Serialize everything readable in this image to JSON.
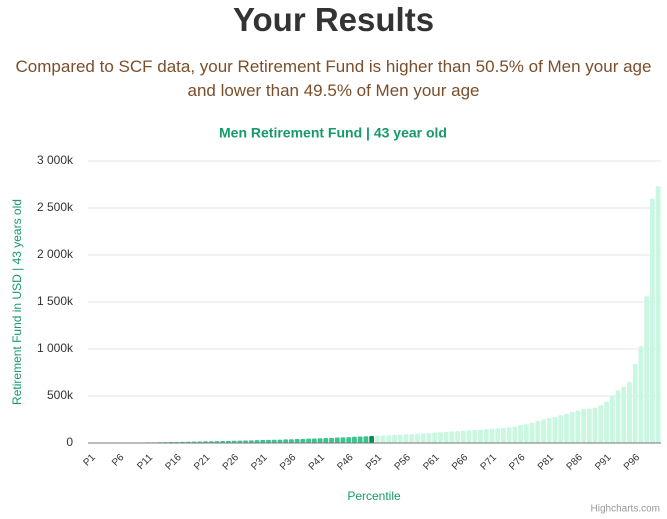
{
  "heading": "Your Results",
  "intro": "Compared to SCF data, your Retirement Fund is higher than 50.5% of Men your age and lower than 49.5% of Men your age",
  "chart_data": {
    "type": "bar",
    "title": "Men Retirement Fund | 43 year old",
    "y_label": "Retirement Fund in USD | 43 years old",
    "x_label": "Percentile",
    "credits": "Highcharts.com",
    "grid": true,
    "categories": [
      "P1",
      null,
      null,
      null,
      null,
      "P6",
      null,
      null,
      null,
      null,
      "P11",
      null,
      null,
      null,
      null,
      "P16",
      null,
      null,
      null,
      null,
      "P21",
      null,
      null,
      null,
      null,
      "P26",
      null,
      null,
      null,
      null,
      "P31",
      null,
      null,
      null,
      null,
      "P36",
      null,
      null,
      null,
      null,
      "P41",
      null,
      null,
      null,
      null,
      "P46",
      null,
      null,
      null,
      null,
      "P51",
      null,
      null,
      null,
      null,
      "P56",
      null,
      null,
      null,
      null,
      "P61",
      null,
      null,
      null,
      null,
      "P66",
      null,
      null,
      null,
      null,
      "P71",
      null,
      null,
      null,
      null,
      "P76",
      null,
      null,
      null,
      null,
      "P81",
      null,
      null,
      null,
      null,
      "P86",
      null,
      null,
      null,
      null,
      "P91",
      null,
      null,
      null,
      null,
      "P96",
      null,
      null,
      null,
      null
    ],
    "values": [
      0,
      500,
      1000,
      1500,
      2000,
      2500,
      3000,
      3500,
      4000,
      5000,
      6000,
      7000,
      8000,
      9000,
      10000,
      11000,
      12000,
      13000,
      14000,
      16000,
      18000,
      19000,
      20000,
      21000,
      22000,
      24000,
      25000,
      26000,
      28000,
      30000,
      32000,
      33000,
      35000,
      36000,
      38000,
      40000,
      42000,
      44000,
      46000,
      48000,
      50000,
      53000,
      55000,
      58000,
      60000,
      63000,
      66000,
      69000,
      72000,
      75000,
      78000,
      80000,
      83000,
      86000,
      89000,
      92000,
      95000,
      98000,
      101000,
      105000,
      110000,
      114000,
      118000,
      122000,
      126000,
      130000,
      134000,
      138000,
      142000,
      146000,
      150000,
      155000,
      160000,
      165000,
      175000,
      190000,
      200000,
      215000,
      235000,
      250000,
      265000,
      275000,
      295000,
      310000,
      330000,
      345000,
      360000,
      365000,
      375000,
      400000,
      440000,
      500000,
      560000,
      600000,
      650000,
      840000,
      1030000,
      1560000,
      2600000,
      2730000
    ],
    "colors": [
      "#3cc48f",
      "#3cc48f",
      "#3cc48f",
      "#3cc48f",
      "#3cc48f",
      "#3cc48f",
      "#3cc48f",
      "#3cc48f",
      "#3cc48f",
      "#3cc48f",
      "#3cc48f",
      "#3cc48f",
      "#3cc48f",
      "#3cc48f",
      "#3cc48f",
      "#3cc48f",
      "#3cc48f",
      "#3cc48f",
      "#3cc48f",
      "#3cc48f",
      "#3cc48f",
      "#3cc48f",
      "#3cc48f",
      "#3cc48f",
      "#3cc48f",
      "#3cc48f",
      "#3cc48f",
      "#3cc48f",
      "#3cc48f",
      "#3cc48f",
      "#3cc48f",
      "#3cc48f",
      "#3cc48f",
      "#3cc48f",
      "#3cc48f",
      "#3cc48f",
      "#3cc48f",
      "#3cc48f",
      "#3cc48f",
      "#3cc48f",
      "#3cc48f",
      "#3cc48f",
      "#3cc48f",
      "#3cc48f",
      "#3cc48f",
      "#3cc48f",
      "#3cc48f",
      "#3cc48f",
      "#3cc48f",
      "#0c8a5c",
      "#c9f7e1",
      "#c9f7e1",
      "#c9f7e1",
      "#c9f7e1",
      "#c9f7e1",
      "#c9f7e1",
      "#c9f7e1",
      "#c9f7e1",
      "#c9f7e1",
      "#c9f7e1",
      "#c9f7e1",
      "#c9f7e1",
      "#c9f7e1",
      "#c9f7e1",
      "#c9f7e1",
      "#c9f7e1",
      "#c9f7e1",
      "#c9f7e1",
      "#c9f7e1",
      "#c9f7e1",
      "#c9f7e1",
      "#c9f7e1",
      "#c9f7e1",
      "#c9f7e1",
      "#c9f7e1",
      "#c9f7e1",
      "#c9f7e1",
      "#c9f7e1",
      "#c9f7e1",
      "#c9f7e1",
      "#c9f7e1",
      "#c9f7e1",
      "#c9f7e1",
      "#c9f7e1",
      "#c9f7e1",
      "#c9f7e1",
      "#c9f7e1",
      "#c9f7e1",
      "#c9f7e1",
      "#c9f7e1",
      "#c9f7e1",
      "#c9f7e1",
      "#c9f7e1",
      "#c9f7e1",
      "#c9f7e1",
      "#c9f7e1",
      "#c9f7e1",
      "#c9f7e1",
      "#c9f7e1",
      "#c9f7e1"
    ],
    "ylim": [
      0,
      3000000
    ],
    "yticks": [
      0,
      {
        "value": 500000,
        "label": "500k"
      },
      {
        "value": 1000000,
        "label": "1 000k"
      },
      {
        "value": 1500000,
        "label": "1 500k"
      },
      {
        "value": 2000000,
        "label": "2 000k"
      },
      {
        "value": 2500000,
        "label": "2 500k"
      },
      {
        "value": 3000000,
        "label": "3 000k"
      }
    ]
  }
}
